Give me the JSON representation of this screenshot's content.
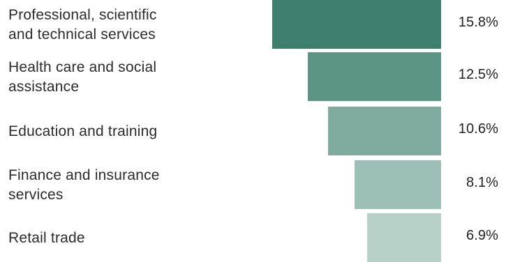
{
  "chart_data": {
    "type": "bar",
    "orientation": "horizontal",
    "categories": [
      "Professional, scientific\nand technical services",
      "Health care and social\nassistance",
      "Education and training",
      "Finance and insurance\nservices",
      "Retail trade"
    ],
    "values": [
      15.8,
      12.5,
      10.6,
      8.1,
      6.9
    ],
    "value_labels": [
      "15.8%",
      "12.5%",
      "10.6%",
      "8.1%",
      "6.9%"
    ],
    "unit": "%",
    "bar_alignment": "right",
    "colors": [
      "#3d7e6c",
      "#5b9584",
      "#7fac9f",
      "#9dc0b6",
      "#b7d0c8"
    ],
    "grid": false,
    "legend": "none"
  }
}
